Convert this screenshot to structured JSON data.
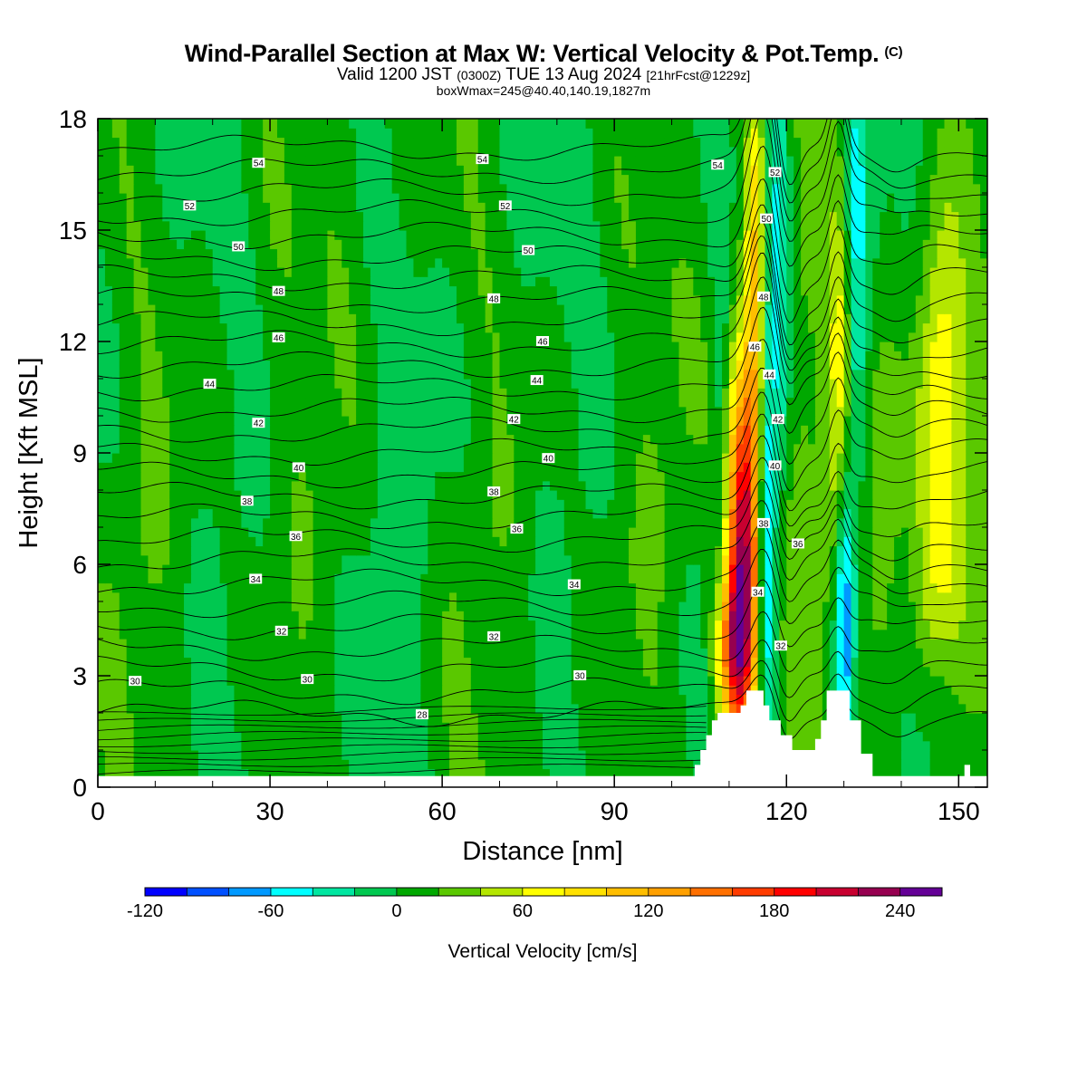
{
  "header": {
    "title": "Wind-Parallel Section at Max W: Vertical Velocity & Pot.Temp.",
    "copyright": "(C)",
    "valid_prefix": "Valid 1200 JST",
    "valid_utc": "(0300Z)",
    "valid_date": "TUE 13 Aug 2024",
    "forecast": "[21hrFcst@1229z]",
    "boxmax": "boxWmax=245@40.40,140.19,1827m"
  },
  "chart_data": {
    "type": "heatmap",
    "xlabel": "Distance [nm]",
    "ylabel": "Height [Kft MSL]",
    "xlim": [
      0,
      155
    ],
    "ylim": [
      0,
      18
    ],
    "xticks": [
      0,
      30,
      60,
      90,
      120,
      150
    ],
    "yticks": [
      0,
      3,
      6,
      9,
      12,
      15,
      18
    ],
    "colorbar": {
      "label": "Vertical Velocity [cm/s]",
      "min": -120,
      "max": 260,
      "step": 20,
      "tick_values": [
        -120,
        -60,
        0,
        60,
        120,
        180,
        240
      ],
      "tick_labels": [
        "-120",
        "-60",
        "0",
        "60",
        "120",
        "180",
        "240"
      ],
      "colors": [
        "#0000ff",
        "#0050ff",
        "#0099ff",
        "#00ffff",
        "#00e6a0",
        "#00c850",
        "#00a800",
        "#5ac800",
        "#b4e600",
        "#ffff00",
        "#ffe100",
        "#ffbe00",
        "#ffa000",
        "#ff7000",
        "#ff3c00",
        "#ff0000",
        "#c80030",
        "#960050",
        "#640096"
      ]
    },
    "terrain": {
      "x_nm": [
        0,
        103,
        104,
        105,
        106,
        107,
        108,
        109,
        112,
        113,
        115,
        116,
        117,
        119,
        121,
        124,
        125,
        126,
        127,
        128,
        130,
        131,
        133,
        135,
        150,
        151,
        152,
        155
      ],
      "height_kft": [
        0.3,
        0.3,
        0.6,
        1.0,
        1.4,
        1.8,
        2.0,
        2.0,
        2.2,
        2.6,
        2.6,
        2.2,
        1.8,
        1.4,
        1.0,
        1.0,
        1.3,
        1.8,
        2.6,
        2.6,
        2.6,
        1.8,
        0.9,
        0.3,
        0.3,
        0.6,
        0.3,
        0.3
      ]
    },
    "theta_contours": {
      "levels": [
        28,
        30,
        32,
        34,
        36,
        38,
        40,
        42,
        44,
        46,
        48,
        50,
        52,
        54
      ],
      "labels": [
        {
          "text": "30",
          "x": 6.5,
          "y": 2.85
        },
        {
          "text": "30",
          "x": 36.5,
          "y": 2.9
        },
        {
          "text": "30",
          "x": 84,
          "y": 3.0
        },
        {
          "text": "28",
          "x": 56.5,
          "y": 1.95
        },
        {
          "text": "32",
          "x": 32,
          "y": 4.2
        },
        {
          "text": "32",
          "x": 69,
          "y": 4.05
        },
        {
          "text": "32",
          "x": 119,
          "y": 3.8
        },
        {
          "text": "34",
          "x": 27.5,
          "y": 5.6
        },
        {
          "text": "34",
          "x": 83,
          "y": 5.45
        },
        {
          "text": "34",
          "x": 115,
          "y": 5.25
        },
        {
          "text": "36",
          "x": 34.5,
          "y": 6.75
        },
        {
          "text": "36",
          "x": 73,
          "y": 6.95
        },
        {
          "text": "36",
          "x": 122,
          "y": 6.55
        },
        {
          "text": "38",
          "x": 26,
          "y": 7.7
        },
        {
          "text": "38",
          "x": 69,
          "y": 7.95
        },
        {
          "text": "38",
          "x": 116,
          "y": 7.1
        },
        {
          "text": "40",
          "x": 35,
          "y": 8.6
        },
        {
          "text": "40",
          "x": 78.5,
          "y": 8.85
        },
        {
          "text": "40",
          "x": 118,
          "y": 8.65
        },
        {
          "text": "42",
          "x": 28,
          "y": 9.8
        },
        {
          "text": "42",
          "x": 72.5,
          "y": 9.9
        },
        {
          "text": "42",
          "x": 118.5,
          "y": 9.9
        },
        {
          "text": "44",
          "x": 19.5,
          "y": 10.85
        },
        {
          "text": "44",
          "x": 76.5,
          "y": 10.95
        },
        {
          "text": "44",
          "x": 117,
          "y": 11.1
        },
        {
          "text": "46",
          "x": 31.5,
          "y": 12.1
        },
        {
          "text": "46",
          "x": 77.5,
          "y": 12.0
        },
        {
          "text": "46",
          "x": 114.5,
          "y": 11.85
        },
        {
          "text": "48",
          "x": 31.5,
          "y": 13.35
        },
        {
          "text": "48",
          "x": 69,
          "y": 13.15
        },
        {
          "text": "48",
          "x": 116,
          "y": 13.2
        },
        {
          "text": "50",
          "x": 24.5,
          "y": 14.55
        },
        {
          "text": "50",
          "x": 75,
          "y": 14.45
        },
        {
          "text": "50",
          "x": 116.5,
          "y": 15.3
        },
        {
          "text": "52",
          "x": 16,
          "y": 15.65
        },
        {
          "text": "52",
          "x": 71,
          "y": 15.65
        },
        {
          "text": "52",
          "x": 118,
          "y": 16.55
        },
        {
          "text": "54",
          "x": 28,
          "y": 16.8
        },
        {
          "text": "54",
          "x": 67,
          "y": 16.9
        },
        {
          "text": "54",
          "x": 108,
          "y": 16.75
        }
      ]
    },
    "w_features": [
      {
        "x": 112.5,
        "y": 6.5,
        "sx": 2.0,
        "sy": 3.6,
        "w": 230
      },
      {
        "x": 110.5,
        "y": 3.6,
        "sx": 2.2,
        "sy": 1.6,
        "w": 120
      },
      {
        "x": 114.5,
        "y": 14.0,
        "sx": 1.2,
        "sy": 3.5,
        "w": 90
      },
      {
        "x": 116.5,
        "y": 6.0,
        "sx": 1.0,
        "sy": 3.5,
        "w": -80
      },
      {
        "x": 118.5,
        "y": 14.5,
        "sx": 1.5,
        "sy": 4.5,
        "w": -60
      },
      {
        "x": 130.0,
        "y": 5.0,
        "sx": 1.2,
        "sy": 3.0,
        "w": -110
      },
      {
        "x": 129.5,
        "y": 10.0,
        "sx": 1.5,
        "sy": 4.5,
        "w": 70
      },
      {
        "x": 132.0,
        "y": 13.5,
        "sx": 1.5,
        "sy": 5.0,
        "w": -60
      },
      {
        "x": 147.0,
        "y": 11.5,
        "sx": 3.0,
        "sy": 3.5,
        "w": 70
      },
      {
        "x": 147.0,
        "y": 6.5,
        "sx": 4.0,
        "sy": 3.5,
        "w": 40
      },
      {
        "x": 137.0,
        "y": 7.5,
        "sx": 2.5,
        "sy": 4.0,
        "w": 35
      },
      {
        "x": 122.5,
        "y": 8.0,
        "sx": 3.0,
        "sy": 5.0,
        "w": 25
      },
      {
        "x": 147.0,
        "y": 2.2,
        "sx": 2.5,
        "sy": 1.4,
        "w": -30
      },
      {
        "x": 108.5,
        "y": 10.0,
        "sx": 1.0,
        "sy": 4.0,
        "w": -25
      }
    ]
  }
}
